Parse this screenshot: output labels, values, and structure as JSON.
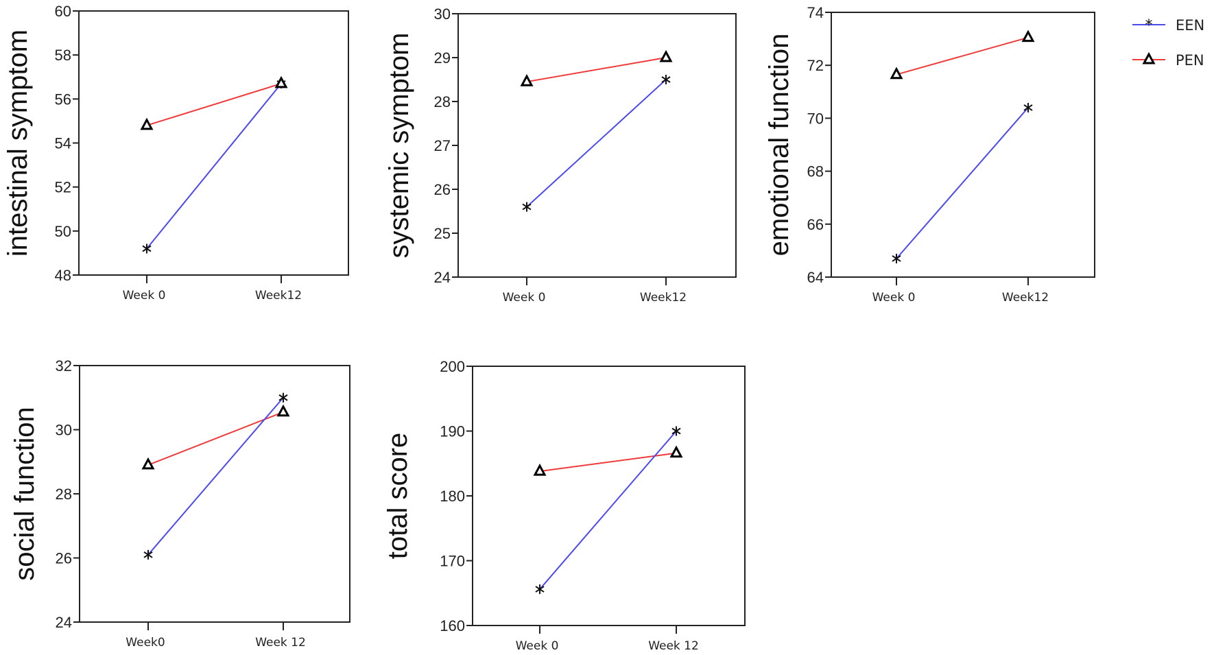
{
  "chart_data": [
    {
      "type": "line",
      "ylabel": "intestinal symptom",
      "categories": [
        "Week 0",
        "Week12"
      ],
      "ylim": [
        48,
        60
      ],
      "yticks": [
        48,
        50,
        52,
        54,
        56,
        58,
        60
      ],
      "series": [
        {
          "name": "EEN",
          "values": [
            49.2,
            56.7
          ]
        },
        {
          "name": "PEN",
          "values": [
            54.8,
            56.7
          ]
        }
      ]
    },
    {
      "type": "line",
      "ylabel": "systemic symptom",
      "categories": [
        "Week 0",
        "Week12"
      ],
      "ylim": [
        24,
        30
      ],
      "yticks": [
        24,
        25,
        26,
        27,
        28,
        29,
        30
      ],
      "series": [
        {
          "name": "EEN",
          "values": [
            25.6,
            28.5
          ]
        },
        {
          "name": "PEN",
          "values": [
            28.45,
            29.0
          ]
        }
      ]
    },
    {
      "type": "line",
      "ylabel": "emotional function",
      "categories": [
        "Week 0",
        "Week12"
      ],
      "ylim": [
        64,
        74
      ],
      "yticks": [
        64,
        66,
        68,
        70,
        72,
        74
      ],
      "series": [
        {
          "name": "EEN",
          "values": [
            64.7,
            70.4
          ]
        },
        {
          "name": "PEN",
          "values": [
            71.65,
            73.05
          ]
        }
      ]
    },
    {
      "type": "line",
      "ylabel": "social function",
      "categories": [
        "Week0",
        "Week 12"
      ],
      "ylim": [
        24,
        32
      ],
      "yticks": [
        24,
        26,
        28,
        30,
        32
      ],
      "series": [
        {
          "name": "EEN",
          "values": [
            26.1,
            31.0
          ]
        },
        {
          "name": "PEN",
          "values": [
            28.9,
            30.55
          ]
        }
      ]
    },
    {
      "type": "line",
      "ylabel": "total score",
      "categories": [
        "Week 0",
        "Week 12"
      ],
      "ylim": [
        160,
        200
      ],
      "yticks": [
        160,
        170,
        180,
        190,
        200
      ],
      "series": [
        {
          "name": "EEN",
          "values": [
            165.6,
            190.0
          ]
        },
        {
          "name": "PEN",
          "values": [
            183.8,
            186.6
          ]
        }
      ]
    }
  ],
  "legend": {
    "placement": "top-right",
    "items": [
      {
        "label": "EEN",
        "color": "#4a4af0",
        "marker": "asterisk"
      },
      {
        "label": "PEN",
        "color": "#f03a3a",
        "marker": "triangle"
      }
    ]
  },
  "grid": false
}
